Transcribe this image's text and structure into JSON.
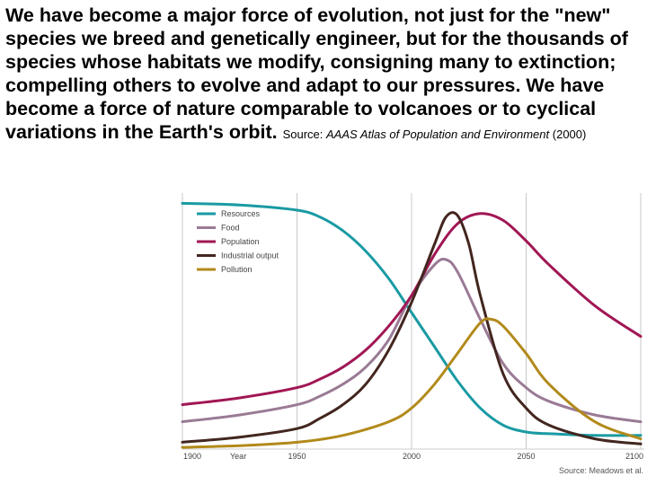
{
  "quote": {
    "text": "We have become a major force of evolution, not just for the \"new\" species we breed and genetically engineer, but for the thousands of species whose habitats we modify, consigning many to extinction; compelling others to evolve and adapt to our pressures. We have become a force of nature comparable to volcanoes or to cyclical variations in the Earth's orbit.",
    "source_prefix": "Source:",
    "source_title": "AAAS Atlas of Population and Environment",
    "source_year": "(2000)"
  },
  "chart_data": {
    "type": "line",
    "title": "",
    "xlabel": "Year",
    "ylabel": "",
    "xlim": [
      1900,
      2100
    ],
    "x_ticks": [
      "1900",
      "1950",
      "2000",
      "2050",
      "2100"
    ],
    "grid": "vertical",
    "legend_position": "top-left",
    "credit": "Source: Meadows et al.",
    "series": [
      {
        "name": "Resources",
        "color": "#1a9aa3",
        "x": [
          1900,
          1925,
          1950,
          1960,
          1970,
          1980,
          1990,
          2000,
          2010,
          2020,
          2030,
          2040,
          2050,
          2060,
          2080,
          2100
        ],
        "y": [
          72,
          71.5,
          70,
          68,
          64,
          58,
          50,
          40,
          30,
          20,
          12,
          7,
          5,
          4.5,
          4,
          4
        ]
      },
      {
        "name": "Food",
        "color": "#9a7a95",
        "x": [
          1900,
          1925,
          1950,
          1960,
          1970,
          1980,
          1990,
          2000,
          2010,
          2015,
          2020,
          2030,
          2040,
          2050,
          2060,
          2080,
          2100
        ],
        "y": [
          8,
          10,
          13,
          15.5,
          19,
          24,
          32,
          45,
          54,
          55.5,
          52,
          38,
          25,
          18,
          14,
          10,
          8
        ]
      },
      {
        "name": "Population",
        "color": "#a11654",
        "x": [
          1900,
          1925,
          1950,
          1960,
          1970,
          1980,
          1990,
          2000,
          2010,
          2020,
          2030,
          2040,
          2050,
          2060,
          2080,
          2100
        ],
        "y": [
          13,
          15,
          18,
          20.5,
          24,
          29,
          36,
          45,
          57,
          66,
          69,
          67,
          61,
          54,
          42,
          33
        ]
      },
      {
        "name": "Industrial output",
        "color": "#42261f",
        "x": [
          1900,
          1925,
          1950,
          1960,
          1970,
          1980,
          1990,
          2000,
          2010,
          2015,
          2020,
          2025,
          2030,
          2040,
          2050,
          2060,
          2080,
          2100
        ],
        "y": [
          2,
          3.5,
          6,
          9,
          13,
          19,
          29,
          43,
          60,
          68,
          68.5,
          60,
          45,
          22,
          12,
          7,
          3,
          1.5
        ]
      },
      {
        "name": "Pollution",
        "color": "#b28a1b",
        "x": [
          1900,
          1925,
          1950,
          1970,
          1990,
          2000,
          2010,
          2020,
          2030,
          2035,
          2040,
          2050,
          2060,
          2080,
          2100
        ],
        "y": [
          0.5,
          1,
          2,
          4,
          8,
          12,
          19,
          28,
          37,
          38,
          36,
          28,
          19,
          8,
          3
        ]
      }
    ]
  }
}
